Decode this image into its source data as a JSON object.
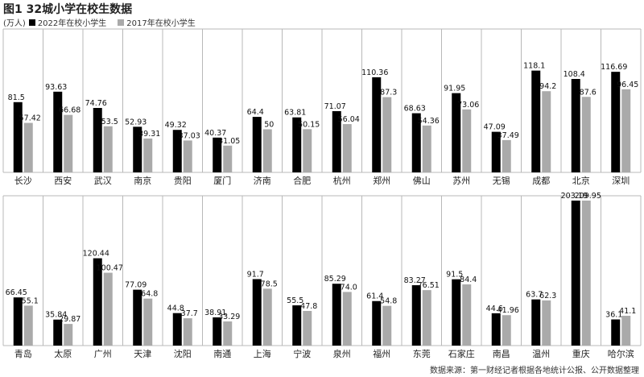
{
  "chart_data": {
    "type": "bar",
    "title": "图1 32城小学在校生数据",
    "unit": "(万人)",
    "source": "数据来源：第一财经记者根据各地统计公报、公开数据整理",
    "colors": {
      "2022": "#000000",
      "2017": "#aaaaaa",
      "grid": "#b8b8b8"
    },
    "series": [
      {
        "name": "2022年在校小学生",
        "key": "2022"
      },
      {
        "name": "2017年在校小学生",
        "key": "2017"
      }
    ],
    "panels": [
      {
        "categories": [
          "长沙",
          "西安",
          "武汉",
          "南京",
          "贵阳",
          "厦门",
          "济南",
          "合肥",
          "杭州",
          "郑州",
          "佛山",
          "苏州",
          "无锡",
          "成都",
          "北京",
          "深圳"
        ],
        "values_2022": [
          81.5,
          93.63,
          74.76,
          52.93,
          49.32,
          40.37,
          64.4,
          63.81,
          71.07,
          110.36,
          68.63,
          91.95,
          47.09,
          118.1,
          108.4,
          116.69
        ],
        "labels_2022": [
          "81.5",
          "93.63",
          "74.76",
          "52.93",
          "49.32",
          "40.37",
          "64.4",
          "63.81",
          "71.07",
          "110.36",
          "68.63",
          "91.95",
          "47.09",
          "118.1",
          "108.4",
          "116.69"
        ],
        "values_2017": [
          57.42,
          66.68,
          53.5,
          39.31,
          37.03,
          31.05,
          50,
          50.15,
          56.04,
          87.3,
          54.36,
          73.06,
          37.49,
          94.2,
          87.6,
          96.45
        ],
        "labels_2017": [
          "57.42",
          "66.68",
          "53.5",
          "39.31",
          "37.03",
          "31.05",
          "50",
          "50.15",
          "56.04",
          "87.3",
          "54.36",
          "73.06",
          "37.49",
          "94.2",
          "87.6",
          "96.45"
        ]
      },
      {
        "categories": [
          "青岛",
          "太原",
          "广州",
          "天津",
          "沈阳",
          "南通",
          "上海",
          "宁波",
          "泉州",
          "福州",
          "东莞",
          "石家庄",
          "南昌",
          "温州",
          "重庆",
          "哈尔滨"
        ],
        "values_2022": [
          66.45,
          35.84,
          120.44,
          77.09,
          44.8,
          38.91,
          91.7,
          55.5,
          85.29,
          61.4,
          83.27,
          91.5,
          44.6,
          63.7,
          203.19,
          36.1
        ],
        "labels_2022": [
          "66.45",
          "35.84",
          "120.44",
          "77.09",
          "44.8",
          "38.91",
          "91.7",
          "55.5",
          "85.29",
          "61.4",
          "83.27",
          "91.5",
          "44.6",
          "63.7",
          "203.19",
          "36.1"
        ],
        "values_2017": [
          55.1,
          29.87,
          100.47,
          64.8,
          37.7,
          33.29,
          78.5,
          47.8,
          74.0,
          54.8,
          76.51,
          84.4,
          41.96,
          62.3,
          209.95,
          41.1
        ],
        "labels_2017": [
          "55.1",
          "29.87",
          "100.47",
          "64.8",
          "37.7",
          "33.29",
          "78.5",
          "47.8",
          "74.0",
          "54.8",
          "76.51",
          "84.4",
          "41.96",
          "62.3",
          "209.95",
          "41.1"
        ]
      }
    ]
  }
}
